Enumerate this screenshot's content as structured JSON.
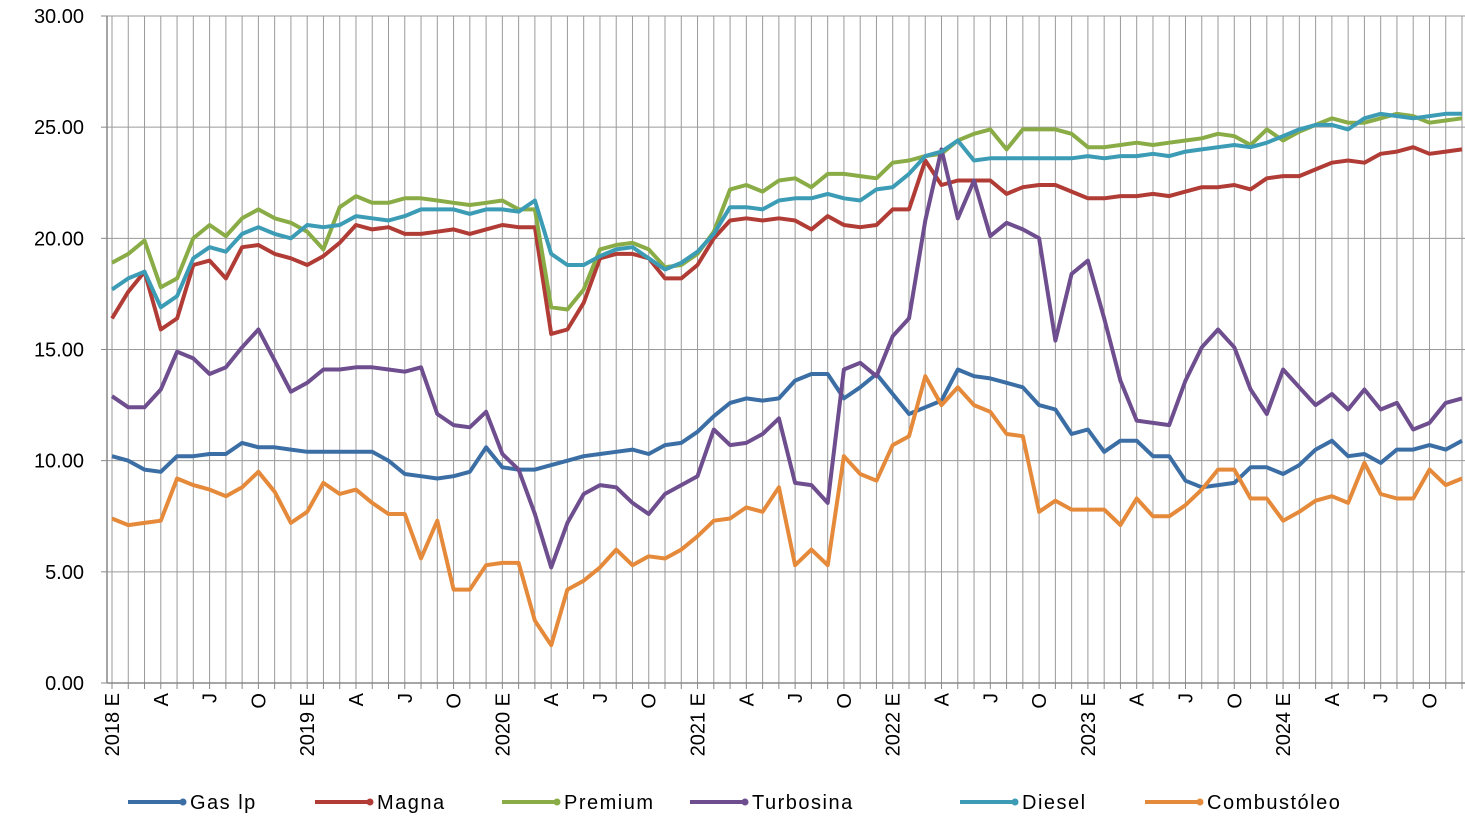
{
  "chart_data": {
    "type": "line",
    "categories": [
      "2018 E",
      null,
      null,
      "A",
      null,
      null,
      "J",
      null,
      null,
      "O",
      null,
      null,
      "2019 E",
      null,
      null,
      "A",
      null,
      null,
      "J",
      null,
      null,
      "O",
      null,
      null,
      "2020 E",
      null,
      null,
      "A",
      null,
      null,
      "J",
      null,
      null,
      "O",
      null,
      null,
      "2021 E",
      null,
      null,
      "A",
      null,
      null,
      "J",
      null,
      null,
      "O",
      null,
      null,
      "2022 E",
      null,
      null,
      "A",
      null,
      null,
      "J",
      null,
      null,
      "O",
      null,
      null,
      "2023 E",
      null,
      null,
      "A",
      null,
      null,
      "J",
      null,
      null,
      "O",
      null,
      null,
      "2024 E",
      null,
      null,
      "A",
      null,
      null,
      "J",
      null,
      null,
      "O",
      null,
      null
    ],
    "ylim": [
      0,
      30
    ],
    "yticks": [
      {
        "value": 0,
        "label": "0.00"
      },
      {
        "value": 5,
        "label": "5.00"
      },
      {
        "value": 10,
        "label": "10.00"
      },
      {
        "value": 15,
        "label": "15.00"
      },
      {
        "value": 20,
        "label": "20.00"
      },
      {
        "value": 25,
        "label": "25.00"
      },
      {
        "value": 30,
        "label": "30.00"
      }
    ],
    "grid": true,
    "legend": "bottom",
    "series": [
      {
        "name": "Gas lp",
        "color": "#3b6ea5",
        "values": [
          10.2,
          10.0,
          9.6,
          9.5,
          10.2,
          10.2,
          10.3,
          10.3,
          10.8,
          10.6,
          10.6,
          10.5,
          10.4,
          10.4,
          10.4,
          10.4,
          10.4,
          10.0,
          9.4,
          9.3,
          9.2,
          9.3,
          9.5,
          10.6,
          9.7,
          9.6,
          9.6,
          9.8,
          10.0,
          10.2,
          10.3,
          10.4,
          10.5,
          10.3,
          10.7,
          10.8,
          11.3,
          12.0,
          12.6,
          12.8,
          12.7,
          12.8,
          13.6,
          13.9,
          13.9,
          12.8,
          13.3,
          13.9,
          13.0,
          12.1,
          12.4,
          12.7,
          14.1,
          13.8,
          13.7,
          13.5,
          13.3,
          12.5,
          12.3,
          11.2,
          11.4,
          10.4,
          10.9,
          10.9,
          10.2,
          10.2,
          9.1,
          8.8,
          8.9,
          9.0,
          9.7,
          9.7,
          9.4,
          9.8,
          10.5,
          10.9,
          10.2,
          10.3,
          9.9,
          10.5,
          10.5,
          10.7,
          10.5,
          10.9
        ]
      },
      {
        "name": "Magna",
        "color": "#b03c35",
        "values": [
          16.4,
          17.6,
          18.5,
          15.9,
          16.4,
          18.8,
          19.0,
          18.2,
          19.6,
          19.7,
          19.3,
          19.1,
          18.8,
          19.2,
          19.8,
          20.6,
          20.4,
          20.5,
          20.2,
          20.2,
          20.3,
          20.4,
          20.2,
          20.4,
          20.6,
          20.5,
          20.5,
          15.7,
          15.9,
          17.1,
          19.1,
          19.3,
          19.3,
          19.1,
          18.2,
          18.2,
          18.8,
          20.0,
          20.8,
          20.9,
          20.8,
          20.9,
          20.8,
          20.4,
          21.0,
          20.6,
          20.5,
          20.6,
          21.3,
          21.3,
          23.5,
          22.4,
          22.6,
          22.6,
          22.6,
          22.0,
          22.3,
          22.4,
          22.4,
          22.1,
          21.8,
          21.8,
          21.9,
          21.9,
          22.0,
          21.9,
          22.1,
          22.3,
          22.3,
          22.4,
          22.2,
          22.7,
          22.8,
          22.8,
          23.1,
          23.4,
          23.5,
          23.4,
          23.8,
          23.9,
          24.1,
          23.8,
          23.9,
          24.0
        ]
      },
      {
        "name": "Premium",
        "color": "#8aac46",
        "values": [
          18.9,
          19.3,
          19.9,
          17.8,
          18.2,
          20.0,
          20.6,
          20.1,
          20.9,
          21.3,
          20.9,
          20.7,
          20.3,
          19.5,
          21.4,
          21.9,
          21.6,
          21.6,
          21.8,
          21.8,
          21.7,
          21.6,
          21.5,
          21.6,
          21.7,
          21.3,
          21.3,
          16.9,
          16.8,
          17.7,
          19.5,
          19.7,
          19.8,
          19.5,
          18.7,
          18.8,
          19.3,
          20.3,
          22.2,
          22.4,
          22.1,
          22.6,
          22.7,
          22.3,
          22.9,
          22.9,
          22.8,
          22.7,
          23.4,
          23.5,
          23.7,
          23.8,
          24.4,
          24.7,
          24.9,
          24.0,
          24.9,
          24.9,
          24.9,
          24.7,
          24.1,
          24.1,
          24.2,
          24.3,
          24.2,
          24.3,
          24.4,
          24.5,
          24.7,
          24.6,
          24.2,
          24.9,
          24.4,
          24.8,
          25.1,
          25.4,
          25.2,
          25.2,
          25.4,
          25.6,
          25.5,
          25.2,
          25.3,
          25.4
        ]
      },
      {
        "name": "Turbosina",
        "color": "#6e4e8e",
        "values": [
          12.9,
          12.4,
          12.4,
          13.2,
          14.9,
          14.6,
          13.9,
          14.2,
          15.1,
          15.9,
          14.5,
          13.1,
          13.5,
          14.1,
          14.1,
          14.2,
          14.2,
          14.1,
          14.0,
          14.2,
          12.1,
          11.6,
          11.5,
          12.2,
          10.3,
          9.6,
          7.6,
          5.2,
          7.2,
          8.5,
          8.9,
          8.8,
          8.1,
          7.6,
          8.5,
          8.9,
          9.3,
          11.4,
          10.7,
          10.8,
          11.2,
          11.9,
          9.0,
          8.9,
          8.1,
          14.1,
          14.4,
          13.8,
          15.6,
          16.4,
          20.8,
          24.0,
          20.9,
          22.6,
          20.1,
          20.7,
          20.4,
          20.0,
          15.4,
          18.4,
          19.0,
          16.4,
          13.6,
          11.8,
          11.7,
          11.6,
          13.6,
          15.1,
          15.9,
          15.1,
          13.2,
          12.1,
          14.1,
          13.3,
          12.5,
          13.0,
          12.3,
          13.2,
          12.3,
          12.6,
          11.4,
          11.7,
          12.6,
          12.8
        ]
      },
      {
        "name": "Diesel",
        "color": "#3c9cb5",
        "values": [
          17.7,
          18.2,
          18.5,
          16.9,
          17.4,
          19.1,
          19.6,
          19.4,
          20.2,
          20.5,
          20.2,
          20.0,
          20.6,
          20.5,
          20.6,
          21.0,
          20.9,
          20.8,
          21.0,
          21.3,
          21.3,
          21.3,
          21.1,
          21.3,
          21.3,
          21.2,
          21.7,
          19.3,
          18.8,
          18.8,
          19.2,
          19.5,
          19.6,
          19.1,
          18.6,
          18.9,
          19.4,
          20.2,
          21.4,
          21.4,
          21.3,
          21.7,
          21.8,
          21.8,
          22.0,
          21.8,
          21.7,
          22.2,
          22.3,
          22.9,
          23.7,
          23.9,
          24.4,
          23.5,
          23.6,
          23.6,
          23.6,
          23.6,
          23.6,
          23.6,
          23.7,
          23.6,
          23.7,
          23.7,
          23.8,
          23.7,
          23.9,
          24.0,
          24.1,
          24.2,
          24.1,
          24.3,
          24.6,
          24.9,
          25.1,
          25.1,
          24.9,
          25.4,
          25.6,
          25.5,
          25.4,
          25.5,
          25.6,
          25.6
        ]
      },
      {
        "name": "Combustóleo",
        "color": "#e58a3a",
        "values": [
          7.4,
          7.1,
          7.2,
          7.3,
          9.2,
          8.9,
          8.7,
          8.4,
          8.8,
          9.5,
          8.6,
          7.2,
          7.7,
          9.0,
          8.5,
          8.7,
          8.1,
          7.6,
          7.6,
          5.6,
          7.3,
          4.2,
          4.2,
          5.3,
          5.4,
          5.4,
          2.8,
          1.7,
          4.2,
          4.6,
          5.2,
          6.0,
          5.3,
          5.7,
          5.6,
          6.0,
          6.6,
          7.3,
          7.4,
          7.9,
          7.7,
          8.8,
          5.3,
          6.0,
          5.3,
          10.2,
          9.4,
          9.1,
          10.7,
          11.1,
          13.8,
          12.5,
          13.3,
          12.5,
          12.2,
          11.2,
          11.1,
          7.7,
          8.2,
          7.8,
          7.8,
          7.8,
          7.1,
          8.3,
          7.5,
          7.5,
          8.0,
          8.7,
          9.6,
          9.6,
          8.3,
          8.3,
          7.3,
          7.7,
          8.2,
          8.4,
          8.1,
          9.9,
          8.5,
          8.3,
          8.3,
          9.6,
          8.9,
          9.2
        ]
      }
    ]
  }
}
